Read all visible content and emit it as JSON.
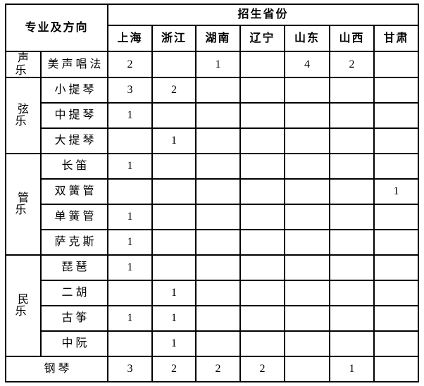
{
  "table": {
    "header": {
      "corner_label": "专业及方向",
      "provinces_label": "招生省份",
      "provinces": [
        "上海",
        "浙江",
        "湖南",
        "辽宁",
        "山东",
        "山西",
        "甘肃"
      ]
    },
    "groups": [
      {
        "name": "声乐",
        "rows": [
          {
            "specialty": "美声唱法",
            "values": [
              "2",
              "",
              "1",
              "",
              "4",
              "2",
              ""
            ]
          }
        ]
      },
      {
        "name": "弦乐",
        "rows": [
          {
            "specialty": "小提琴",
            "values": [
              "3",
              "2",
              "",
              "",
              "",
              "",
              ""
            ]
          },
          {
            "specialty": "中提琴",
            "values": [
              "1",
              "",
              "",
              "",
              "",
              "",
              ""
            ]
          },
          {
            "specialty": "大提琴",
            "values": [
              "",
              "1",
              "",
              "",
              "",
              "",
              ""
            ]
          }
        ]
      },
      {
        "name": "管乐",
        "rows": [
          {
            "specialty": "长笛",
            "values": [
              "1",
              "",
              "",
              "",
              "",
              "",
              ""
            ]
          },
          {
            "specialty": "双簧管",
            "values": [
              "",
              "",
              "",
              "",
              "",
              "",
              "1"
            ]
          },
          {
            "specialty": "单簧管",
            "values": [
              "1",
              "",
              "",
              "",
              "",
              "",
              ""
            ]
          },
          {
            "specialty": "萨克斯",
            "values": [
              "1",
              "",
              "",
              "",
              "",
              "",
              ""
            ]
          }
        ]
      },
      {
        "name": "民乐",
        "rows": [
          {
            "specialty": "琵琶",
            "values": [
              "1",
              "",
              "",
              "",
              "",
              "",
              ""
            ]
          },
          {
            "specialty": "二胡",
            "values": [
              "",
              "1",
              "",
              "",
              "",
              "",
              ""
            ]
          },
          {
            "specialty": "古筝",
            "values": [
              "1",
              "1",
              "",
              "",
              "",
              "",
              ""
            ]
          },
          {
            "specialty": "中阮",
            "values": [
              "",
              "1",
              "",
              "",
              "",
              "",
              ""
            ]
          }
        ]
      }
    ],
    "footer": {
      "label": "钢琴",
      "values": [
        "3",
        "2",
        "2",
        "2",
        "",
        "1",
        ""
      ]
    }
  }
}
